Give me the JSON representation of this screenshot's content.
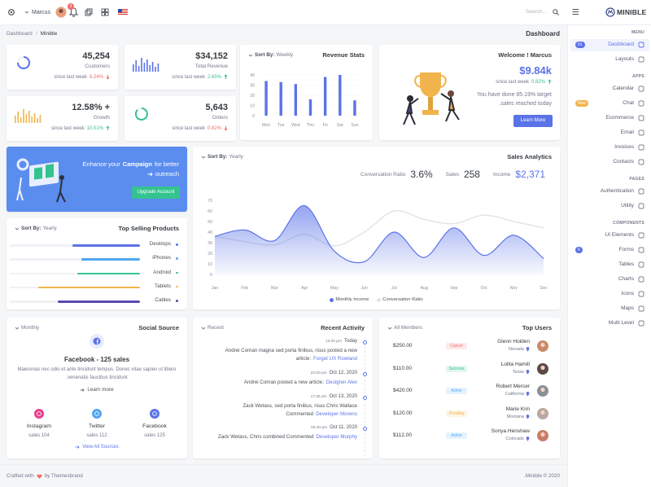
{
  "topbar": {
    "user": "Marcus",
    "notification_count": "3",
    "search": "Search...",
    "brand": "MINIBLE"
  },
  "breadcrumb": {
    "items": [
      "Dashboard",
      "Minible"
    ],
    "title": "Dashboard"
  },
  "stats": [
    {
      "value": "45,254",
      "label": "Customers",
      "since": "since last week",
      "change": "6.24%",
      "up": false
    },
    {
      "value": "$34,152",
      "label": "Total Revenue",
      "since": "since last week",
      "change": "2.65%",
      "up": true
    },
    {
      "value": "12.58% +",
      "label": "Growth",
      "since": "since last week",
      "change": "10.51%",
      "up": true
    },
    {
      "value": "5,643",
      "label": "Orders",
      "since": "since last week",
      "change": "0.82%",
      "up": false
    }
  ],
  "revenue_stats": {
    "sort_label": "Sort By:",
    "sort": "Weekly",
    "title": "Revenue Stats",
    "chart": {
      "type": "bar",
      "categories": [
        "Mon",
        "Tue",
        "Wed",
        "Thu",
        "Fri",
        "Sat",
        "Sun"
      ],
      "values": [
        34,
        33,
        31,
        16,
        38,
        40,
        15
      ],
      "color": "#5b73e8",
      "ylim": [
        0,
        40
      ],
      "yticks": [
        0,
        10,
        20,
        30,
        40
      ]
    }
  },
  "welcome": {
    "title": "Welcome ! Marcus",
    "amount": "$9.84k",
    "since": "since last week",
    "change": "0.82%",
    "up": true,
    "text": [
      "You have done 85.19% target",
      ".sales reached today"
    ],
    "button": "Learn More"
  },
  "campaign": {
    "text_before": "Enhance your",
    "highlight": "Campaign",
    "text_after": "for better",
    "line2": "outreach",
    "button": "Upgrade Account"
  },
  "top_selling": {
    "sort_label": "Sort By:",
    "sort": "Yearly",
    "title": "Top Selling Products",
    "xlim": [
      0,
      100
    ],
    "products": [
      {
        "name": "Desktops",
        "value": 52,
        "color": "#5b73e8"
      },
      {
        "name": "iPhones",
        "value": 45,
        "color": "#50a5f1"
      },
      {
        "name": "Android",
        "value": 48,
        "color": "#34c38f"
      },
      {
        "name": "Tablets",
        "value": 78,
        "color": "#f1b44c"
      },
      {
        "name": "Cables",
        "value": 63,
        "color": "#564ab1"
      }
    ]
  },
  "sales_analytics": {
    "sort_label": "Sort By:",
    "sort": "Yearly",
    "title": "Sales Analytics",
    "metrics": [
      {
        "label": "Conversation Ratio",
        "value": "3.6%",
        "color": "#343a40"
      },
      {
        "label": "Sales",
        "value": "258",
        "color": "#343a40"
      },
      {
        "label": "Income",
        "value": "$2,371",
        "color": "#5b73e8"
      }
    ],
    "chart": {
      "type": "area",
      "categories": [
        "Jan",
        "Feb",
        "Mar",
        "Apr",
        "May",
        "Jun",
        "Jul",
        "Aug",
        "Sep",
        "Oct",
        "Nov",
        "Dec"
      ],
      "ylim": [
        0,
        70
      ],
      "yticks": [
        0,
        10,
        20,
        30,
        40,
        50,
        60,
        70
      ],
      "series": [
        {
          "name": "Monthly Income",
          "type": "area",
          "color": "#5b73e8",
          "values": [
            36,
            42,
            32,
            65,
            22,
            12,
            40,
            16,
            44,
            18,
            37,
            15
          ]
        },
        {
          "name": "Conversation Ratio",
          "type": "line",
          "color": "#e3e4ea",
          "values": [
            36,
            31,
            28,
            38,
            27,
            40,
            60,
            52,
            48,
            56,
            50,
            44
          ]
        }
      ]
    }
  },
  "social_source": {
    "period": "Monthly",
    "title": "Social Source",
    "headline": "Facebook - 125 sales",
    "description": [
      "Maecenas nec odio et ante tincidunt tempus. Donec vitae sapien ut libero",
      ".venenatis faucibus tincidunt"
    ],
    "link": "Learn more",
    "sources": [
      {
        "name": "Instagram",
        "sales": "sales 104",
        "color": "#e83e8c"
      },
      {
        "name": "Twitter",
        "sales": "sales 112",
        "color": "#50a5f1"
      },
      {
        "name": "Facebook",
        "sales": "sales 125",
        "color": "#5b73e8"
      }
    ],
    "footer_link": "View All Sources"
  },
  "recent_activity": {
    "filter": "Recent",
    "title": "Recent Activity",
    "items": [
      {
        "time": "12:20 pm",
        "date": "Today",
        "text": "Andrei Coman magna sed porta finibus, risus posted a new article:",
        "link": "Forget UX Rowland"
      },
      {
        "time": "22:00 pm",
        "date": "Oct 12, 2020",
        "text": "Andrei Coman posted a new article:",
        "link": "Designer Alex"
      },
      {
        "time": "17:36 pm",
        "date": "Oct 13, 2020",
        "text": "Zack Wetass, sed porta finibus, risus Chris Wallace Commented",
        "link": "Developer Moreno"
      },
      {
        "time": "02:40 pm",
        "date": "Oct 11, 2020",
        "text": "Zack Wetass, Chris combined Commented",
        "link": "Developer Murphy"
      }
    ]
  },
  "top_users": {
    "filter": "All Members",
    "title": "Top Users",
    "users": [
      {
        "name": "Glenn Holden",
        "location": "Nevada",
        "amount": "$250.00",
        "status": "Cancel",
        "status_color": "#f46a6a",
        "avatar_color": "#c98a6b"
      },
      {
        "name": "Lolita Hamill",
        "location": "Texas",
        "amount": "$110.00",
        "status": "Success",
        "status_color": "#34c38f",
        "avatar_color": "#5a4a48"
      },
      {
        "name": "Robert Mercer",
        "location": "California",
        "amount": "$420.00",
        "status": "Active",
        "status_color": "#50a5f1",
        "avatar_color": "#8a8f99"
      },
      {
        "name": "Marie Kim",
        "location": "Montana",
        "amount": "$120.00",
        "status": "Pending",
        "status_color": "#f1b44c",
        "avatar_color": "#b9a7a0"
      },
      {
        "name": "Sonya Henshaw",
        "location": "Colorado",
        "amount": "$112.00",
        "status": "Active",
        "status_color": "#50a5f1",
        "avatar_color": "#c77d6a"
      }
    ]
  },
  "sidebar": {
    "sections": [
      {
        "title": "MENU",
        "items": [
          {
            "label": "Dashboard",
            "badge": "01",
            "badge_color": "#5b73e8",
            "active": true
          },
          {
            "label": "Layouts"
          }
        ]
      },
      {
        "title": "APPS",
        "items": [
          {
            "label": "Calendar"
          },
          {
            "label": "Chat",
            "badge": "New",
            "badge_color": "#f1b44c"
          },
          {
            "label": "Ecommerce"
          },
          {
            "label": "Email"
          },
          {
            "label": "Invoices"
          },
          {
            "label": "Contacts"
          }
        ]
      },
      {
        "title": "PAGES",
        "items": [
          {
            "label": "Authentication"
          },
          {
            "label": "Utility"
          }
        ]
      },
      {
        "title": "COMPONENTS",
        "items": [
          {
            "label": "UI Elements"
          },
          {
            "label": "Forms",
            "badge": "6",
            "badge_color": "#5b73e8"
          },
          {
            "label": "Tables"
          },
          {
            "label": "Charts"
          },
          {
            "label": "Icons"
          },
          {
            "label": "Maps"
          },
          {
            "label": "Multi Level"
          }
        ]
      }
    ]
  },
  "footer": {
    "left_before": "Crafted with",
    "left_after": "by Themesbrand",
    "right": ".Minible © 2020"
  }
}
